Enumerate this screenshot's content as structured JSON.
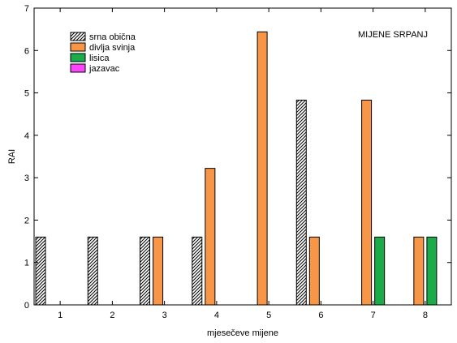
{
  "chart_data": {
    "type": "bar",
    "title": "MIJENE SRPANJ",
    "xlabel": "mjesečeve mijene",
    "ylabel": "RAI",
    "categories": [
      "1",
      "2",
      "3",
      "4",
      "5",
      "6",
      "7",
      "8"
    ],
    "ylim": [
      0,
      7
    ],
    "yticks": [
      0,
      1,
      2,
      3,
      4,
      5,
      6,
      7
    ],
    "grid": false,
    "legend_position": "top-left",
    "series": [
      {
        "name": "srna obična",
        "color": "#ffffff",
        "pattern": "diagonal-hatch",
        "values": [
          1.6,
          1.6,
          1.6,
          1.6,
          0,
          4.83,
          0,
          0
        ]
      },
      {
        "name": "divlja svinja",
        "color": "#f79646",
        "values": [
          0,
          0,
          1.6,
          3.22,
          6.44,
          1.6,
          4.83,
          1.6
        ]
      },
      {
        "name": "lisica",
        "color": "#1aab4b",
        "values": [
          0,
          0,
          0,
          0,
          0,
          0,
          1.6,
          1.6
        ]
      },
      {
        "name": "jazavac",
        "color": "#ff44ff",
        "values": [
          0,
          0,
          0,
          0,
          0,
          0,
          0,
          0
        ]
      }
    ]
  }
}
